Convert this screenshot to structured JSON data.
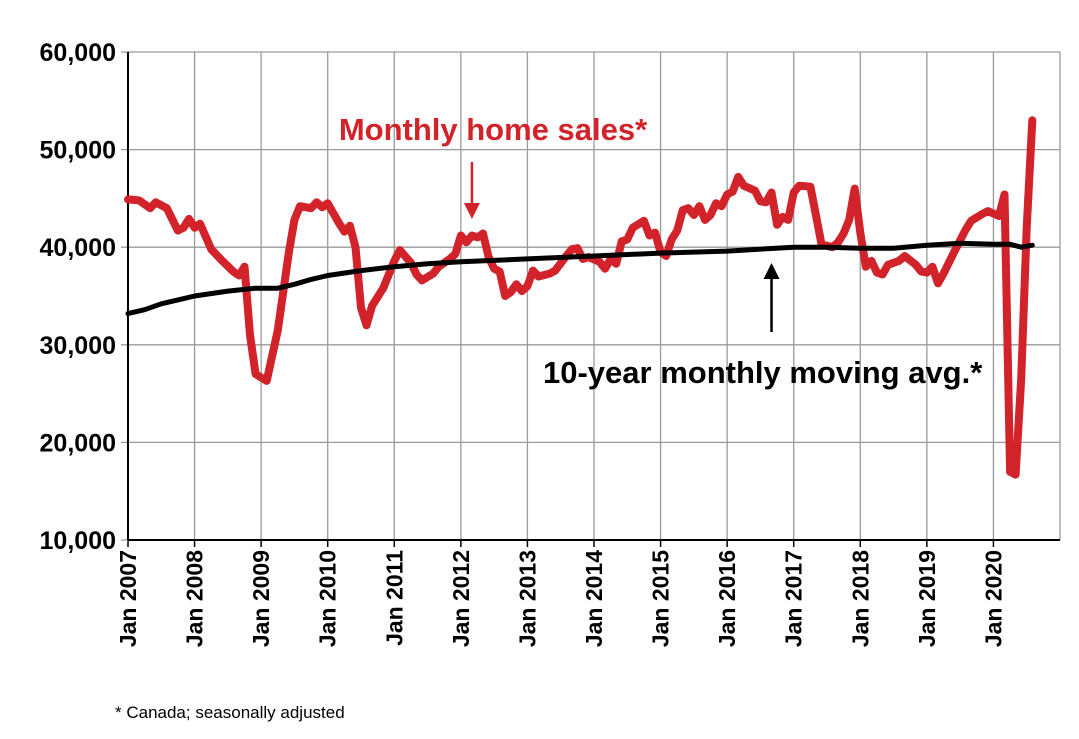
{
  "chart_data": {
    "type": "line",
    "xlabel": "",
    "ylabel": "",
    "ylim": [
      10000,
      60000
    ],
    "xlim": [
      "2007-01",
      "2020-12"
    ],
    "grid": true,
    "y_ticks": [
      "10,000",
      "20,000",
      "30,000",
      "40,000",
      "50,000",
      "60,000"
    ],
    "x_ticks": [
      "Jan 2007",
      "Jan 2008",
      "Jan 2009",
      "Jan 2010",
      "Jan 2011",
      "Jan 2012",
      "Jan 2013",
      "Jan 2014",
      "Jan 2015",
      "Jan 2016",
      "Jan 2017",
      "Jan 2018",
      "Jan 2019",
      "Jan 2020"
    ],
    "series": [
      {
        "name": "Monthly home sales*",
        "color": "#d2222a",
        "points": [
          [
            "2007-01",
            44900
          ],
          [
            "2007-03",
            44800
          ],
          [
            "2007-05",
            44000
          ],
          [
            "2007-06",
            44600
          ],
          [
            "2007-08",
            44000
          ],
          [
            "2007-10",
            41700
          ],
          [
            "2007-11",
            42000
          ],
          [
            "2007-12",
            42900
          ],
          [
            "2008-01",
            42000
          ],
          [
            "2008-02",
            42400
          ],
          [
            "2008-04",
            39800
          ],
          [
            "2008-06",
            38600
          ],
          [
            "2008-08",
            37500
          ],
          [
            "2008-09",
            37100
          ],
          [
            "2008-10",
            38000
          ],
          [
            "2008-11",
            31000
          ],
          [
            "2008-12",
            27000
          ],
          [
            "2009-02",
            26300
          ],
          [
            "2009-04",
            31500
          ],
          [
            "2009-06",
            39500
          ],
          [
            "2009-07",
            42800
          ],
          [
            "2009-08",
            44200
          ],
          [
            "2009-10",
            44000
          ],
          [
            "2009-11",
            44600
          ],
          [
            "2009-12",
            44100
          ],
          [
            "2010-01",
            44500
          ],
          [
            "2010-03",
            42500
          ],
          [
            "2010-04",
            41600
          ],
          [
            "2010-05",
            42200
          ],
          [
            "2010-06",
            40000
          ],
          [
            "2010-07",
            33800
          ],
          [
            "2010-08",
            32000
          ],
          [
            "2010-09",
            34000
          ],
          [
            "2010-11",
            35800
          ],
          [
            "2011-01",
            38600
          ],
          [
            "2011-02",
            39700
          ],
          [
            "2011-04",
            38400
          ],
          [
            "2011-05",
            37200
          ],
          [
            "2011-06",
            36600
          ],
          [
            "2011-08",
            37300
          ],
          [
            "2011-09",
            38000
          ],
          [
            "2011-11",
            38800
          ],
          [
            "2011-12",
            39300
          ],
          [
            "2012-01",
            41200
          ],
          [
            "2012-02",
            40500
          ],
          [
            "2012-03",
            41200
          ],
          [
            "2012-04",
            41000
          ],
          [
            "2012-05",
            41400
          ],
          [
            "2012-06",
            39000
          ],
          [
            "2012-07",
            37800
          ],
          [
            "2012-08",
            37500
          ],
          [
            "2012-09",
            35000
          ],
          [
            "2012-10",
            35400
          ],
          [
            "2012-11",
            36200
          ],
          [
            "2012-12",
            35500
          ],
          [
            "2013-01",
            36000
          ],
          [
            "2013-02",
            37600
          ],
          [
            "2013-03",
            37000
          ],
          [
            "2013-05",
            37300
          ],
          [
            "2013-06",
            37600
          ],
          [
            "2013-08",
            39100
          ],
          [
            "2013-09",
            39800
          ],
          [
            "2013-10",
            39900
          ],
          [
            "2013-11",
            38800
          ],
          [
            "2013-12",
            39000
          ],
          [
            "2014-02",
            38500
          ],
          [
            "2014-03",
            37800
          ],
          [
            "2014-04",
            38800
          ],
          [
            "2014-05",
            38300
          ],
          [
            "2014-06",
            40600
          ],
          [
            "2014-07",
            40800
          ],
          [
            "2014-08",
            42000
          ],
          [
            "2014-10",
            42700
          ],
          [
            "2014-11",
            41200
          ],
          [
            "2014-12",
            41500
          ],
          [
            "2015-01",
            39500
          ],
          [
            "2015-02",
            39100
          ],
          [
            "2015-03",
            40800
          ],
          [
            "2015-04",
            41700
          ],
          [
            "2015-05",
            43800
          ],
          [
            "2015-06",
            44000
          ],
          [
            "2015-07",
            43300
          ],
          [
            "2015-08",
            44200
          ],
          [
            "2015-09",
            42800
          ],
          [
            "2015-10",
            43300
          ],
          [
            "2015-11",
            44500
          ],
          [
            "2015-12",
            44200
          ],
          [
            "2016-01",
            45400
          ],
          [
            "2016-02",
            45700
          ],
          [
            "2016-03",
            47200
          ],
          [
            "2016-04",
            46300
          ],
          [
            "2016-06",
            45800
          ],
          [
            "2016-07",
            44700
          ],
          [
            "2016-08",
            44600
          ],
          [
            "2016-09",
            45600
          ],
          [
            "2016-10",
            42300
          ],
          [
            "2016-11",
            43100
          ],
          [
            "2016-12",
            42800
          ],
          [
            "2017-01",
            45600
          ],
          [
            "2017-02",
            46300
          ],
          [
            "2017-04",
            46200
          ],
          [
            "2017-05",
            43300
          ],
          [
            "2017-06",
            40300
          ],
          [
            "2017-08",
            40000
          ],
          [
            "2017-09",
            40500
          ],
          [
            "2017-10",
            41400
          ],
          [
            "2017-11",
            42800
          ],
          [
            "2017-12",
            46000
          ],
          [
            "2018-01",
            41500
          ],
          [
            "2018-02",
            38000
          ],
          [
            "2018-03",
            38600
          ],
          [
            "2018-04",
            37400
          ],
          [
            "2018-05",
            37200
          ],
          [
            "2018-06",
            38200
          ],
          [
            "2018-08",
            38600
          ],
          [
            "2018-09",
            39100
          ],
          [
            "2018-11",
            38200
          ],
          [
            "2018-12",
            37500
          ],
          [
            "2019-01",
            37400
          ],
          [
            "2019-02",
            38000
          ],
          [
            "2019-03",
            36300
          ],
          [
            "2019-04",
            37300
          ],
          [
            "2019-06",
            39600
          ],
          [
            "2019-08",
            41800
          ],
          [
            "2019-09",
            42700
          ],
          [
            "2019-11",
            43400
          ],
          [
            "2019-12",
            43700
          ],
          [
            "2020-02",
            43200
          ],
          [
            "2020-03",
            45400
          ],
          [
            "2020-04",
            17000
          ],
          [
            "2020-05",
            16700
          ],
          [
            "2020-06",
            26500
          ],
          [
            "2020-07",
            42000
          ],
          [
            "2020-08",
            53000
          ]
        ]
      },
      {
        "name": "10-year monthly moving avg.*",
        "color": "#000000",
        "points": [
          [
            "2007-01",
            33200
          ],
          [
            "2007-04",
            33600
          ],
          [
            "2007-07",
            34200
          ],
          [
            "2007-10",
            34600
          ],
          [
            "2008-01",
            35000
          ],
          [
            "2008-07",
            35500
          ],
          [
            "2008-12",
            35800
          ],
          [
            "2009-04",
            35800
          ],
          [
            "2009-07",
            36200
          ],
          [
            "2009-10",
            36700
          ],
          [
            "2010-01",
            37100
          ],
          [
            "2010-07",
            37600
          ],
          [
            "2011-01",
            38000
          ],
          [
            "2011-07",
            38300
          ],
          [
            "2012-01",
            38500
          ],
          [
            "2013-01",
            38800
          ],
          [
            "2014-01",
            39100
          ],
          [
            "2015-01",
            39400
          ],
          [
            "2016-01",
            39600
          ],
          [
            "2017-01",
            40000
          ],
          [
            "2017-07",
            40000
          ],
          [
            "2018-01",
            39900
          ],
          [
            "2018-07",
            39900
          ],
          [
            "2019-01",
            40200
          ],
          [
            "2019-07",
            40400
          ],
          [
            "2020-01",
            40300
          ],
          [
            "2020-04",
            40300
          ],
          [
            "2020-06",
            40000
          ],
          [
            "2020-08",
            40200
          ]
        ]
      }
    ],
    "annotations": [
      {
        "label": "Monthly home sales*",
        "color": "#d2222a",
        "arrow": "down",
        "points_to": "2012-03"
      },
      {
        "label": "10-year monthly moving avg.*",
        "color": "#000000",
        "arrow": "up",
        "points_to": "2016-09"
      }
    ]
  },
  "footnote": "* Canada; seasonally adjusted"
}
